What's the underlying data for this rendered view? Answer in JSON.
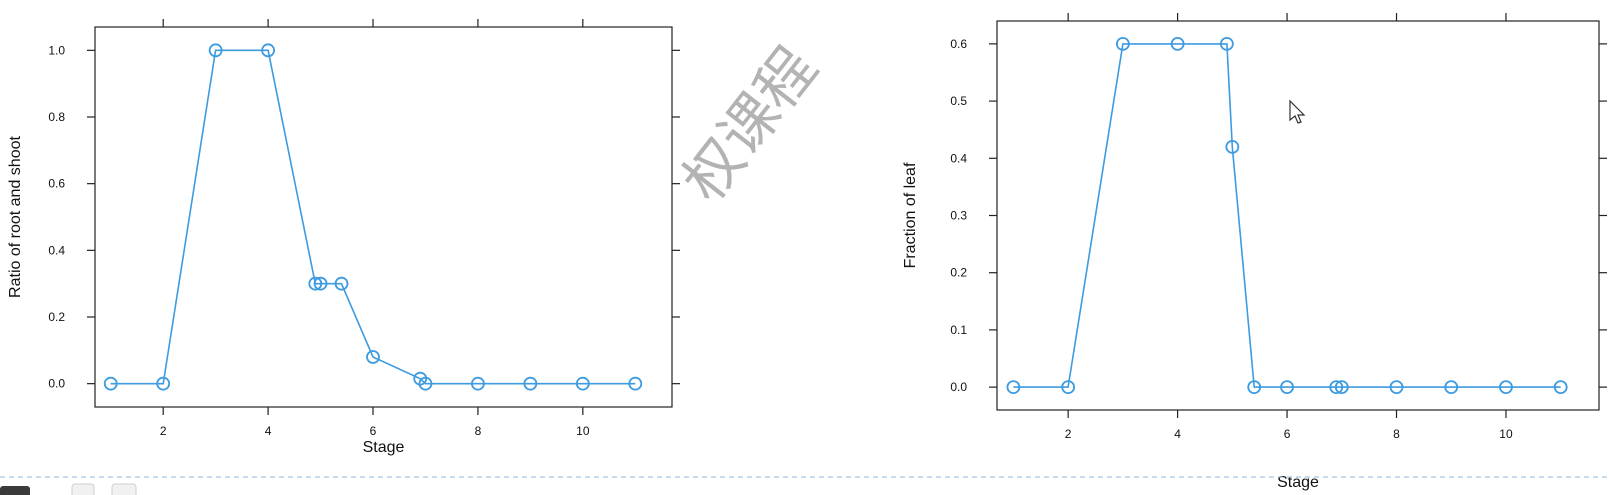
{
  "chart_data": [
    {
      "type": "line",
      "title": "",
      "xlabel": "Stage",
      "ylabel": "Ratio of root and shoot",
      "xlim": [
        0.7,
        11.7
      ],
      "ylim": [
        -0.07,
        1.07
      ],
      "x_ticks": [
        2,
        4,
        6,
        8,
        10
      ],
      "x_tick_labels": [
        "2",
        "4",
        "6",
        "8",
        "10"
      ],
      "y_ticks": [
        0.0,
        0.2,
        0.4,
        0.6,
        0.8,
        1.0
      ],
      "y_tick_labels": [
        "0.0",
        "0.2",
        "0.4",
        "0.6",
        "0.8",
        "1.0"
      ],
      "grid": false,
      "series": [
        {
          "x": [
            1,
            2,
            3,
            4,
            4.9,
            5,
            5.4,
            6,
            6.9,
            7,
            8,
            9,
            10,
            11
          ],
          "y": [
            0,
            0,
            1.0,
            1.0,
            0.3,
            0.3,
            0.3,
            0.08,
            0.015,
            0,
            0,
            0,
            0,
            0
          ],
          "color": "#3d9be0"
        }
      ]
    },
    {
      "type": "line",
      "title": "",
      "xlabel": "Stage",
      "ylabel": "Fraction of leaf",
      "xlim": [
        0.7,
        11.7
      ],
      "ylim": [
        -0.04,
        0.64
      ],
      "x_ticks": [
        2,
        4,
        6,
        8,
        10
      ],
      "x_tick_labels": [
        "2",
        "4",
        "6",
        "8",
        "10"
      ],
      "y_ticks": [
        0.0,
        0.1,
        0.2,
        0.3,
        0.4,
        0.5,
        0.6
      ],
      "y_tick_labels": [
        "0.0",
        "0.1",
        "0.2",
        "0.3",
        "0.4",
        "0.5",
        "0.6"
      ],
      "grid": false,
      "series": [
        {
          "x": [
            1,
            2,
            3,
            4,
            4.9,
            5,
            5.4,
            6,
            6.9,
            7,
            8,
            9,
            10,
            11
          ],
          "y": [
            0,
            0,
            0.6,
            0.6,
            0.6,
            0.42,
            0,
            0,
            0,
            0,
            0,
            0,
            0,
            0
          ],
          "color": "#3d9be0"
        }
      ]
    }
  ],
  "watermark": "权课程"
}
